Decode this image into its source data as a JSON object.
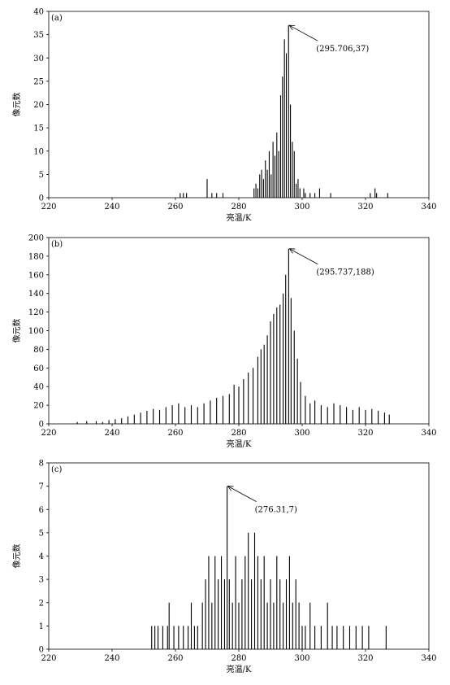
{
  "chart_data": [
    {
      "type": "bar",
      "panel_label": "(a)",
      "xlabel": "亮温/K",
      "ylabel": "像元数",
      "xlim": [
        220,
        340
      ],
      "ylim": [
        0,
        40
      ],
      "x_ticks": [
        "220",
        "240",
        "260",
        "280",
        "300",
        "320",
        "340"
      ],
      "y_ticks": [
        "0",
        "5",
        "10",
        "15",
        "20",
        "25",
        "30",
        "35",
        "40"
      ],
      "annotation": {
        "text": "(295.706,37)",
        "x": 295.706,
        "y": 37
      },
      "x": [
        261.5,
        262.5,
        263.5,
        270.0,
        271.5,
        273.0,
        275.0,
        284.8,
        285.4,
        286.0,
        286.6,
        287.2,
        287.8,
        288.4,
        289.0,
        289.6,
        290.2,
        290.8,
        291.4,
        292.0,
        292.6,
        293.2,
        293.8,
        294.4,
        295.0,
        295.706,
        296.3,
        296.9,
        297.5,
        298.1,
        298.7,
        299.3,
        300.5,
        301.0,
        302.5,
        304.0,
        305.5,
        309.0,
        321.5,
        323.0,
        323.5,
        327.0
      ],
      "values": [
        1,
        1,
        1,
        4,
        1,
        1,
        1,
        2,
        3,
        2,
        5,
        6,
        4,
        8,
        6,
        10,
        5,
        12,
        9,
        14,
        10,
        22,
        26,
        34,
        31,
        37,
        20,
        12,
        10,
        3,
        4,
        2,
        2,
        1,
        1,
        1,
        2,
        1,
        1,
        2,
        1,
        1
      ]
    },
    {
      "type": "bar",
      "panel_label": "(b)",
      "xlabel": "亮温/K",
      "ylabel": "像元数",
      "xlim": [
        220,
        340
      ],
      "ylim": [
        0,
        200
      ],
      "x_ticks": [
        "220",
        "240",
        "260",
        "280",
        "300",
        "320",
        "340"
      ],
      "y_ticks": [
        "0",
        "20",
        "40",
        "60",
        "80",
        "100",
        "120",
        "140",
        "160",
        "180",
        "200"
      ],
      "annotation": {
        "text": "(295.737,188)",
        "x": 295.737,
        "y": 188
      },
      "x": [
        229.0,
        232.0,
        235.0,
        237.0,
        239.0,
        241.0,
        243.0,
        245.0,
        247.0,
        249.0,
        251.0,
        253.0,
        255.0,
        257.0,
        259.0,
        261.0,
        263.0,
        265.0,
        267.0,
        269.0,
        271.0,
        273.0,
        275.0,
        277.0,
        278.5,
        280.0,
        281.5,
        283.0,
        284.5,
        286.0,
        287.0,
        288.0,
        289.0,
        290.0,
        291.0,
        292.0,
        293.0,
        294.0,
        294.8,
        295.737,
        296.5,
        297.5,
        298.5,
        299.5,
        301.0,
        302.5,
        304.0,
        306.0,
        308.0,
        310.0,
        312.0,
        314.0,
        316.0,
        318.0,
        320.0,
        322.0,
        324.0,
        326.0,
        327.5
      ],
      "values": [
        2,
        3,
        3,
        2,
        4,
        5,
        6,
        8,
        10,
        12,
        14,
        16,
        15,
        18,
        20,
        22,
        18,
        20,
        18,
        22,
        25,
        28,
        30,
        32,
        42,
        40,
        48,
        55,
        60,
        72,
        80,
        85,
        95,
        110,
        118,
        125,
        128,
        140,
        160,
        188,
        135,
        100,
        70,
        45,
        30,
        22,
        25,
        20,
        18,
        22,
        20,
        18,
        15,
        18,
        15,
        16,
        14,
        12,
        10
      ]
    },
    {
      "type": "bar",
      "panel_label": "(c)",
      "xlabel": "亮温/K",
      "ylabel": "像元数",
      "xlim": [
        220,
        340
      ],
      "ylim": [
        0,
        8
      ],
      "x_ticks": [
        "220",
        "240",
        "260",
        "280",
        "300",
        "320",
        "340"
      ],
      "y_ticks": [
        "0",
        "1",
        "2",
        "3",
        "4",
        "5",
        "6",
        "7",
        "8"
      ],
      "annotation": {
        "text": "(276.31,7)",
        "x": 276.31,
        "y": 7
      },
      "x": [
        252.5,
        253.5,
        254.5,
        256.0,
        257.5,
        258.0,
        259.5,
        261.0,
        262.5,
        264.0,
        265.0,
        266.0,
        267.0,
        268.5,
        269.5,
        270.5,
        271.5,
        272.5,
        273.5,
        274.5,
        275.5,
        276.31,
        277.0,
        278.0,
        279.0,
        280.0,
        281.0,
        282.0,
        283.0,
        284.0,
        285.0,
        286.0,
        287.0,
        288.0,
        289.0,
        290.0,
        291.0,
        292.0,
        293.0,
        294.0,
        295.0,
        296.0,
        297.0,
        298.0,
        299.0,
        300.0,
        301.0,
        302.5,
        304.0,
        306.0,
        308.0,
        309.5,
        311.0,
        313.0,
        315.0,
        317.0,
        319.0,
        321.0,
        326.5
      ],
      "values": [
        1,
        1,
        1,
        1,
        1,
        2,
        1,
        1,
        1,
        1,
        2,
        1,
        1,
        2,
        3,
        4,
        2,
        4,
        3,
        4,
        3,
        7,
        3,
        2,
        4,
        2,
        3,
        4,
        5,
        3,
        5,
        4,
        3,
        4,
        2,
        3,
        2,
        4,
        3,
        2,
        3,
        4,
        2,
        3,
        2,
        1,
        1,
        2,
        1,
        1,
        2,
        1,
        1,
        1,
        1,
        1,
        1,
        1,
        1
      ]
    }
  ]
}
